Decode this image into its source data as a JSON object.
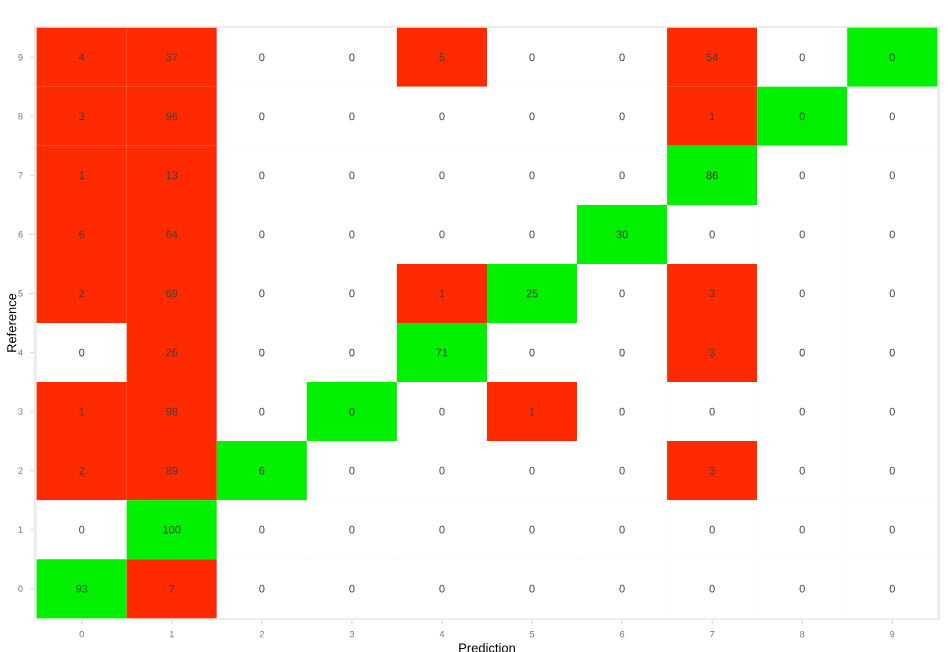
{
  "chart_data": {
    "type": "heatmap",
    "xlabel": "Prediction",
    "ylabel": "Reference",
    "categories": [
      "0",
      "1",
      "2",
      "3",
      "4",
      "5",
      "6",
      "7",
      "8",
      "9"
    ],
    "y_categories": [
      "9",
      "8",
      "7",
      "6",
      "5",
      "4",
      "3",
      "2",
      "1",
      "0"
    ],
    "cells": [
      [
        4,
        37,
        0,
        0,
        5,
        0,
        0,
        54,
        0,
        0
      ],
      [
        3,
        96,
        0,
        0,
        0,
        0,
        0,
        1,
        0,
        0
      ],
      [
        1,
        13,
        0,
        0,
        0,
        0,
        0,
        86,
        0,
        0
      ],
      [
        6,
        64,
        0,
        0,
        0,
        0,
        30,
        0,
        0,
        0
      ],
      [
        2,
        69,
        0,
        0,
        1,
        25,
        0,
        3,
        0,
        0
      ],
      [
        0,
        26,
        0,
        0,
        71,
        0,
        0,
        3,
        0,
        0
      ],
      [
        1,
        98,
        0,
        0,
        0,
        1,
        0,
        0,
        0,
        0
      ],
      [
        2,
        89,
        6,
        0,
        0,
        0,
        0,
        3,
        0,
        0
      ],
      [
        0,
        100,
        0,
        0,
        0,
        0,
        0,
        0,
        0,
        0
      ],
      [
        93,
        7,
        0,
        0,
        0,
        0,
        0,
        0,
        0,
        0
      ]
    ],
    "colors": [
      [
        "#ff2a00",
        "#ff2a00",
        "#ffffff",
        "#ffffff",
        "#ff2a00",
        "#ffffff",
        "#ffffff",
        "#ff2a00",
        "#ffffff",
        "#00f000"
      ],
      [
        "#ff2a00",
        "#ff2a00",
        "#ffffff",
        "#ffffff",
        "#ffffff",
        "#ffffff",
        "#ffffff",
        "#ff2a00",
        "#00f000",
        "#ffffff"
      ],
      [
        "#ff2a00",
        "#ff2a00",
        "#ffffff",
        "#ffffff",
        "#ffffff",
        "#ffffff",
        "#ffffff",
        "#00f000",
        "#ffffff",
        "#ffffff"
      ],
      [
        "#ff2a00",
        "#ff2a00",
        "#ffffff",
        "#ffffff",
        "#ffffff",
        "#ffffff",
        "#00f000",
        "#ffffff",
        "#ffffff",
        "#ffffff"
      ],
      [
        "#ff2a00",
        "#ff2a00",
        "#ffffff",
        "#ffffff",
        "#ff2a00",
        "#00f000",
        "#ffffff",
        "#ff2a00",
        "#ffffff",
        "#ffffff"
      ],
      [
        "#ffffff",
        "#ff2a00",
        "#ffffff",
        "#ffffff",
        "#00f000",
        "#ffffff",
        "#ffffff",
        "#ff2a00",
        "#ffffff",
        "#ffffff"
      ],
      [
        "#ff2a00",
        "#ff2a00",
        "#ffffff",
        "#00f000",
        "#ffffff",
        "#ff2a00",
        "#ffffff",
        "#ffffff",
        "#ffffff",
        "#ffffff"
      ],
      [
        "#ff2a00",
        "#ff2a00",
        "#00f000",
        "#ffffff",
        "#ffffff",
        "#ffffff",
        "#ffffff",
        "#ff2a00",
        "#ffffff",
        "#ffffff"
      ],
      [
        "#ffffff",
        "#00f000",
        "#ffffff",
        "#ffffff",
        "#ffffff",
        "#ffffff",
        "#ffffff",
        "#ffffff",
        "#ffffff",
        "#ffffff"
      ],
      [
        "#00f000",
        "#ff2a00",
        "#ffffff",
        "#ffffff",
        "#ffffff",
        "#ffffff",
        "#ffffff",
        "#ffffff",
        "#ffffff",
        "#ffffff"
      ]
    ],
    "data_labels": true
  }
}
